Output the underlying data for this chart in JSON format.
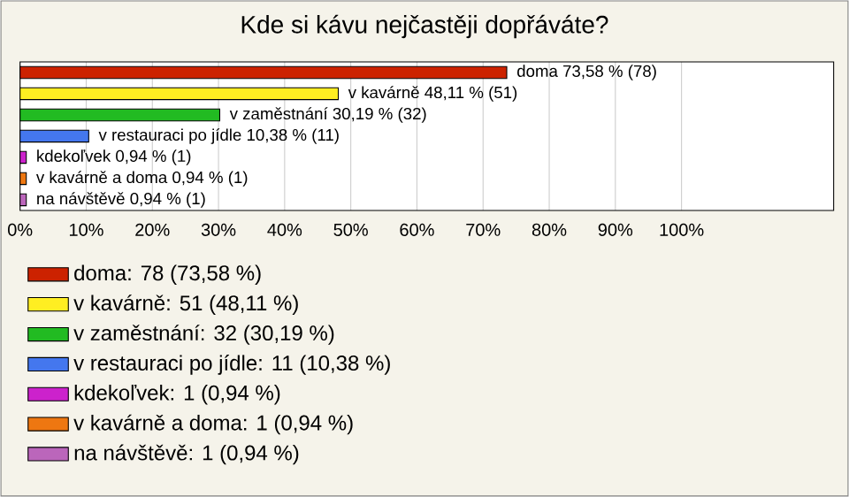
{
  "chart_data": {
    "type": "bar",
    "orientation": "horizontal",
    "title": "Kde si kávu nejčastěji dopřáváte?",
    "categories": [
      null,
      null,
      null,
      null,
      null,
      null,
      null
    ],
    "series": [
      {
        "name": "doma: 78 (73,58 %)",
        "color": "#cc2200",
        "values": [
          73.58,
          null,
          null,
          null,
          null,
          null,
          null
        ],
        "value_labels": [
          "doma 73,58 % (78)",
          null,
          null,
          null,
          null,
          null,
          null
        ]
      },
      {
        "name": "v kavárně: 51 (48,11 %)",
        "color": "#ffee22",
        "values": [
          null,
          48.11,
          null,
          null,
          null,
          null,
          null
        ],
        "value_labels": [
          null,
          "v kavárně 48,11 % (51)",
          null,
          null,
          null,
          null,
          null
        ]
      },
      {
        "name": "v zaměstnání: 32 (30,19 %)",
        "color": "#22bb22",
        "values": [
          null,
          null,
          30.19,
          null,
          null,
          null,
          null
        ],
        "value_labels": [
          null,
          null,
          "v zaměstnání 30,19 % (32)",
          null,
          null,
          null,
          null
        ]
      },
      {
        "name": "v restauraci po jídle: 11 (10,38 %)",
        "color": "#4477ee",
        "values": [
          null,
          null,
          null,
          10.38,
          null,
          null,
          null
        ],
        "value_labels": [
          null,
          null,
          null,
          "v restauraci po jídle 10,38 % (11)",
          null,
          null,
          null
        ]
      },
      {
        "name": "kdekoľvek: 1 (0,94 %)",
        "color": "#cc22cc",
        "values": [
          null,
          null,
          null,
          null,
          0.94,
          null,
          null
        ],
        "value_labels": [
          null,
          null,
          null,
          null,
          "kdekoľvek 0,94 % (1)",
          null,
          null
        ]
      },
      {
        "name": "v kavárně a doma: 1 (0,94 %)",
        "color": "#ee7711",
        "values": [
          null,
          null,
          null,
          null,
          null,
          0.94,
          null
        ],
        "value_labels": [
          null,
          null,
          null,
          null,
          null,
          "v kavárně a doma 0,94 % (1)",
          null
        ]
      },
      {
        "name": "na návštěvě: 1 (0,94 %)",
        "color": "#bb66bb",
        "values": [
          null,
          null,
          null,
          null,
          null,
          null,
          0.94
        ],
        "value_labels": [
          null,
          null,
          null,
          null,
          null,
          null,
          "na návštěvě 0,94 % (1)"
        ]
      }
    ],
    "xlim": [
      0,
      123
    ],
    "xticks": [
      {
        "value": 0,
        "label": "0%"
      },
      {
        "value": 10,
        "label": "10%"
      },
      {
        "value": 20,
        "label": "20%"
      },
      {
        "value": 30,
        "label": "30%"
      },
      {
        "value": 40,
        "label": "40%"
      },
      {
        "value": 50,
        "label": "50%"
      },
      {
        "value": 60,
        "label": "60%"
      },
      {
        "value": 70,
        "label": "70%"
      },
      {
        "value": 80,
        "label": "80%"
      },
      {
        "value": 90,
        "label": "90%"
      },
      {
        "value": 100,
        "label": "100%"
      }
    ],
    "grid": "x",
    "legend": "bottom left"
  }
}
